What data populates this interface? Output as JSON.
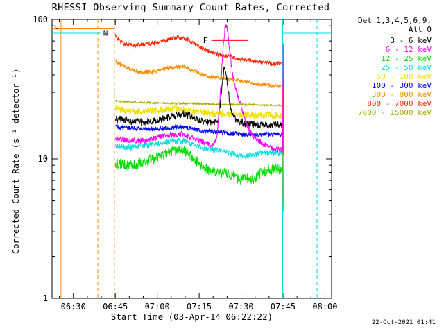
{
  "title": "RHESSI Observing Summary Count Rates, Corrected",
  "timestamp": "22-Oct-2021 01:41",
  "chart_data": {
    "type": "line",
    "title": "RHESSI Observing Summary Count Rates, Corrected",
    "xlabel": "Start Time (03-Apr-14 06:22:22)",
    "ylabel": "Corrected Count Rate (s⁻¹ detector⁻¹)",
    "y_scale": "log",
    "ylim": [
      1,
      100
    ],
    "x_unit": "minutes after 06:22:22 UT",
    "xlim_minutes": [
      0,
      100
    ],
    "grid": false,
    "legend_position": "right",
    "x_ticks": [
      {
        "t": 7.63,
        "label": "06:30"
      },
      {
        "t": 22.63,
        "label": "06:45"
      },
      {
        "t": 37.63,
        "label": "07:00"
      },
      {
        "t": 52.63,
        "label": "07:15"
      },
      {
        "t": 67.63,
        "label": "07:30"
      },
      {
        "t": 82.63,
        "label": "07:45"
      },
      {
        "t": 97.63,
        "label": "08:00"
      }
    ],
    "y_ticks": [
      {
        "v": 1,
        "label": "1"
      },
      {
        "v": 10,
        "label": "10"
      },
      {
        "v": 100,
        "label": "100"
      }
    ],
    "legend": {
      "det": "Det 1,3,4,5,6,9,",
      "att": "Att 0",
      "items": [
        {
          "label": "3 - 6 keV",
          "color": "#000000"
        },
        {
          "label": "6 - 12 keV",
          "color": "#ff00ff"
        },
        {
          "label": "12 - 25 keV",
          "color": "#00dd00"
        },
        {
          "label": "25 - 50 keV",
          "color": "#00dddd"
        },
        {
          "label": "50 - 100 keV",
          "color": "#f0e000"
        },
        {
          "label": "100 - 300 keV",
          "color": "#0000ff"
        },
        {
          "label": "300 - 800 keV",
          "color": "#ff8c00"
        },
        {
          "label": "800 - 7000 keV",
          "color": "#ff2200"
        },
        {
          "label": "7000 - 15000 keV",
          "color": "#a8a800"
        }
      ]
    },
    "flags": [
      {
        "name": "saa",
        "label": "S",
        "color": "#ff8c00",
        "label_t": 0.8,
        "label_v": 86,
        "bars": [
          {
            "t0": 0,
            "t1": 22.3,
            "v": 86
          }
        ],
        "lines": [
          {
            "t": 3.2,
            "style": "solid"
          },
          {
            "t": 16.4,
            "style": "dashed"
          },
          {
            "t": 22.3,
            "style": "dashed"
          }
        ]
      },
      {
        "name": "night",
        "label": "N",
        "color": "#00dddd",
        "label_t": 18.3,
        "label_v": 80,
        "bars": [
          {
            "t0": 0,
            "t1": 17.5,
            "v": 80
          },
          {
            "t0": 82.5,
            "t1": 100,
            "v": 80
          }
        ],
        "lines": [
          {
            "t": 82.5,
            "style": "solid"
          },
          {
            "t": 94.8,
            "style": "dashed"
          }
        ]
      },
      {
        "name": "flare",
        "label": "F",
        "color": "#ff0000",
        "label_t": 54.0,
        "label_v": 71,
        "bars": [
          {
            "t0": 57,
            "t1": 70,
            "v": 71
          }
        ],
        "lines": []
      }
    ],
    "series": [
      {
        "name": "800-7000-keV",
        "color": "#ff2200",
        "noise": 0.035,
        "points": [
          [
            22.7,
            76
          ],
          [
            24,
            70
          ],
          [
            26,
            67
          ],
          [
            29,
            65
          ],
          [
            33,
            66
          ],
          [
            37,
            68
          ],
          [
            41,
            71
          ],
          [
            44,
            74
          ],
          [
            47,
            74
          ],
          [
            49,
            71
          ],
          [
            52,
            65
          ],
          [
            55,
            60
          ],
          [
            58,
            57
          ],
          [
            61,
            55
          ],
          [
            64,
            54
          ],
          [
            67,
            52
          ],
          [
            70,
            51
          ],
          [
            73,
            50
          ],
          [
            76,
            49
          ],
          [
            79,
            48
          ],
          [
            82.5,
            48
          ]
        ]
      },
      {
        "name": "300-800-keV",
        "color": "#ff8c00",
        "noise": 0.035,
        "points": [
          [
            22.7,
            50
          ],
          [
            25,
            47
          ],
          [
            28,
            44
          ],
          [
            32,
            42
          ],
          [
            36,
            42
          ],
          [
            40,
            44
          ],
          [
            44,
            46
          ],
          [
            47,
            46
          ],
          [
            50,
            43
          ],
          [
            53,
            41
          ],
          [
            56,
            39
          ],
          [
            60,
            38
          ],
          [
            64,
            37
          ],
          [
            68,
            36
          ],
          [
            72,
            35
          ],
          [
            76,
            34
          ],
          [
            82.5,
            33
          ],
          [
            82.9,
            2.5
          ]
        ]
      },
      {
        "name": "7000-15000-keV",
        "color": "#a8a800",
        "noise": 0.015,
        "points": [
          [
            22.7,
            26
          ],
          [
            30,
            25.5
          ],
          [
            40,
            25
          ],
          [
            50,
            25
          ],
          [
            60,
            24.5
          ],
          [
            70,
            24.5
          ],
          [
            82.5,
            24
          ],
          [
            82.8,
            2
          ]
        ]
      },
      {
        "name": "50-100-keV",
        "color": "#f0e000",
        "noise": 0.06,
        "points": [
          [
            22.7,
            23
          ],
          [
            28,
            22
          ],
          [
            34,
            22
          ],
          [
            40,
            22.5
          ],
          [
            45,
            23
          ],
          [
            50,
            22
          ],
          [
            55,
            21.5
          ],
          [
            60,
            21
          ],
          [
            65,
            21
          ],
          [
            70,
            20.5
          ],
          [
            76,
            20.5
          ],
          [
            82.5,
            20.5
          ]
        ]
      },
      {
        "name": "100-300-keV",
        "color": "#0000ff",
        "noise": 0.04,
        "points": [
          [
            22.7,
            17
          ],
          [
            30,
            16.5
          ],
          [
            40,
            16.5
          ],
          [
            47,
            17
          ],
          [
            53,
            16
          ],
          [
            60,
            15.5
          ],
          [
            68,
            15
          ],
          [
            75,
            15
          ],
          [
            82.5,
            15
          ]
        ]
      },
      {
        "name": "3-6-keV",
        "color": "#000000",
        "noise": 0.06,
        "points": [
          [
            22.7,
            19.5
          ],
          [
            26,
            19
          ],
          [
            30,
            18.5
          ],
          [
            35,
            18.5
          ],
          [
            40,
            19.5
          ],
          [
            44,
            20.5
          ],
          [
            47,
            21
          ],
          [
            50,
            20
          ],
          [
            53,
            19
          ],
          [
            56,
            18
          ],
          [
            58,
            18
          ],
          [
            59.5,
            19
          ],
          [
            60.5,
            28
          ],
          [
            61.5,
            45
          ],
          [
            62.5,
            38
          ],
          [
            63.5,
            26
          ],
          [
            64.5,
            21
          ],
          [
            66,
            19
          ],
          [
            69,
            18
          ],
          [
            73,
            17.5
          ],
          [
            78,
            17.5
          ],
          [
            82.5,
            17.5
          ]
        ]
      },
      {
        "name": "25-50-keV",
        "color": "#00dddd",
        "noise": 0.05,
        "points": [
          [
            22.7,
            12.5
          ],
          [
            27,
            12
          ],
          [
            33,
            12.5
          ],
          [
            39,
            13
          ],
          [
            44,
            13.5
          ],
          [
            47,
            13.5
          ],
          [
            51,
            12.5
          ],
          [
            55,
            12
          ],
          [
            59,
            11.5
          ],
          [
            63,
            11
          ],
          [
            67,
            10.5
          ],
          [
            71,
            10.5
          ],
          [
            75,
            11
          ],
          [
            79,
            11
          ],
          [
            82.5,
            11
          ]
        ]
      },
      {
        "name": "12-25-keV",
        "color": "#00dd00",
        "noise": 0.09,
        "points": [
          [
            22.7,
            9.5
          ],
          [
            27,
            9
          ],
          [
            33,
            9.5
          ],
          [
            39,
            10.5
          ],
          [
            44,
            11.5
          ],
          [
            47,
            11.5
          ],
          [
            51,
            10
          ],
          [
            55,
            8.5
          ],
          [
            59,
            8
          ],
          [
            62,
            8
          ],
          [
            65,
            7.5
          ],
          [
            67,
            7
          ],
          [
            69,
            7.5
          ],
          [
            71,
            7
          ],
          [
            73,
            7.5
          ],
          [
            75,
            8
          ],
          [
            78,
            8.5
          ],
          [
            82.5,
            8.5
          ]
        ]
      },
      {
        "name": "6-12-keV",
        "color": "#ff00ff",
        "noise": 0.05,
        "points": [
          [
            22.7,
            14
          ],
          [
            27,
            13.5
          ],
          [
            33,
            13.5
          ],
          [
            39,
            14.5
          ],
          [
            44,
            15
          ],
          [
            47,
            15
          ],
          [
            51,
            14
          ],
          [
            55,
            13
          ],
          [
            57.5,
            12.5
          ],
          [
            59,
            14
          ],
          [
            60,
            25
          ],
          [
            61,
            55
          ],
          [
            62,
            92
          ],
          [
            62.8,
            85
          ],
          [
            63.5,
            60
          ],
          [
            64.5,
            42
          ],
          [
            65.5,
            33
          ],
          [
            67,
            26
          ],
          [
            68.5,
            21
          ],
          [
            70,
            17
          ],
          [
            72,
            14.5
          ],
          [
            75,
            13
          ],
          [
            78,
            12
          ],
          [
            82.5,
            11.5
          ],
          [
            82.7,
            70
          ],
          [
            82.9,
            3
          ]
        ]
      }
    ]
  }
}
